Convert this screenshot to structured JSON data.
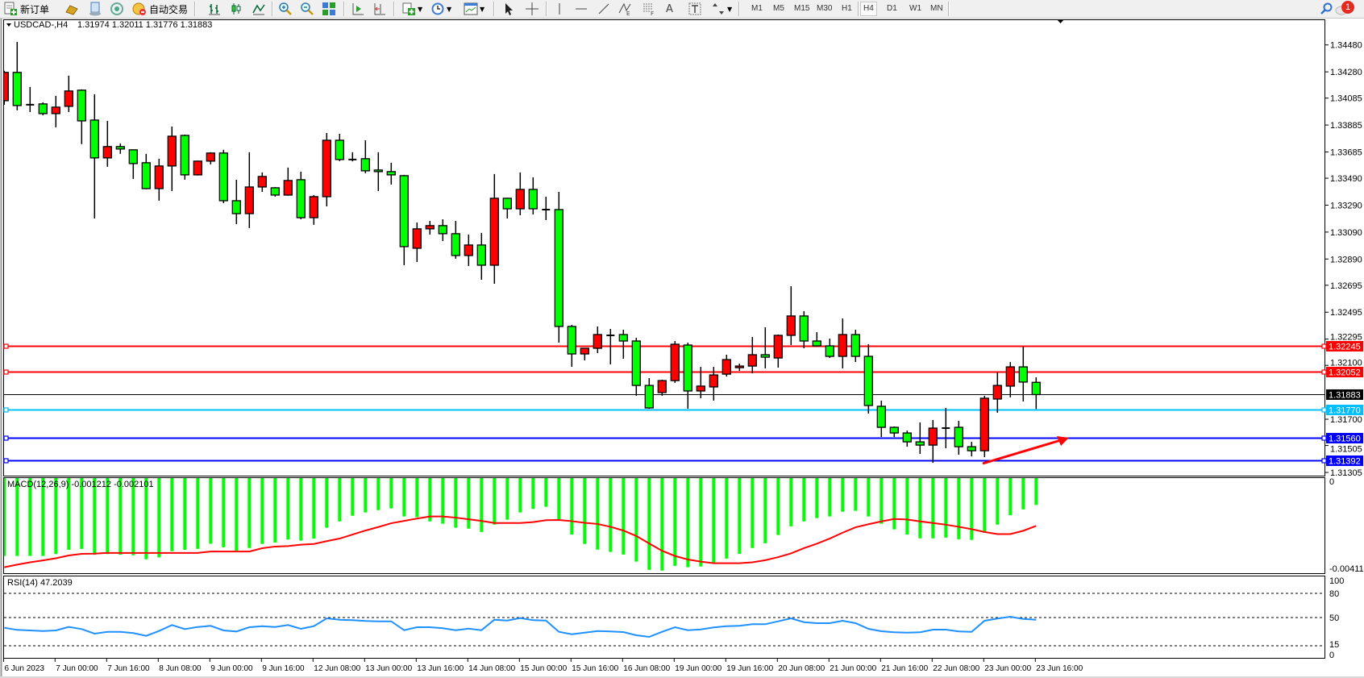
{
  "toolbar": {
    "new_order_label": "新订单",
    "autotrading_label": "自动交易",
    "timeframes": [
      "M1",
      "M5",
      "M15",
      "M30",
      "H1",
      "H4",
      "D1",
      "W1",
      "MN"
    ],
    "active_timeframe": "H4",
    "notification_count": "1",
    "icons": [
      "new-order-icon",
      "gold-bars-icon",
      "market-watch-icon",
      "signals-icon",
      "autotrading-icon",
      "bar-chart-icon",
      "candlestick-icon",
      "line-chart-icon",
      "zoom-in-icon",
      "zoom-out-icon",
      "tile-windows-icon",
      "auto-scroll-icon",
      "chart-shift-icon",
      "indicators-icon",
      "periods-clock-icon",
      "templates-icon",
      "cursor-icon",
      "crosshair-icon",
      "vertical-line-icon",
      "horizontal-line-icon",
      "trendline-icon",
      "fibonacci-expansion-icon",
      "fibonacci-fan-icon",
      "text-icon",
      "text-label-icon",
      "arrows-icon",
      "search-icon",
      "chat-notification-icon"
    ]
  },
  "chart": {
    "symbol_label": "USDCAD-,H4",
    "ohlc_label": "1.31974 1.32011 1.31776 1.31883",
    "macd_label": "MACD(12,26,9) -0.001212 -0.002101",
    "rsi_label": "RSI(14) 47.2039"
  },
  "chart_data": {
    "type": "candlestick",
    "up_color": "#ff0000",
    "down_color": "#00ff00",
    "ylim": [
      1.31281,
      1.3467
    ],
    "current_price": 1.31883,
    "current_price_label": "1.31883",
    "price_ticks": [
      "1.34480",
      "1.34280",
      "1.34085",
      "1.33885",
      "1.33685",
      "1.33490",
      "1.33290",
      "1.33090",
      "1.32890",
      "1.32695",
      "1.32495",
      "1.32295",
      "1.32100",
      "1.31700",
      "1.31505",
      "1.31305"
    ],
    "hlines": [
      {
        "price": 1.32245,
        "label": "1.32245",
        "color": "#ff0000"
      },
      {
        "price": 1.32052,
        "label": "1.32052",
        "color": "#ff0000"
      },
      {
        "price": 1.3177,
        "label": "1.31770",
        "color": "#00bfff"
      },
      {
        "price": 1.3156,
        "label": "1.31560",
        "color": "#0000ff"
      },
      {
        "price": 1.31392,
        "label": "1.31392",
        "color": "#0000ff"
      }
    ],
    "time_labels": [
      "6 Jun 2023",
      "7 Jun 00:00",
      "7 Jun 16:00",
      "8 Jun 08:00",
      "9 Jun 00:00",
      "9 Jun 16:00",
      "12 Jun 08:00",
      "13 Jun 00:00",
      "13 Jun 16:00",
      "14 Jun 08:00",
      "15 Jun 00:00",
      "15 Jun 16:00",
      "16 Jun 08:00",
      "19 Jun 00:00",
      "19 Jun 16:00",
      "20 Jun 08:00",
      "21 Jun 00:00",
      "21 Jun 16:00",
      "22 Jun 08:00",
      "23 Jun 00:00",
      "23 Jun 16:00"
    ],
    "ohlc_columns": [
      "open",
      "high",
      "low",
      "close"
    ],
    "ohlc": [
      [
        1.34066,
        1.34288,
        1.34036,
        1.34276
      ],
      [
        1.34276,
        1.34503,
        1.33994,
        1.3403
      ],
      [
        1.34036,
        1.34168,
        1.33982,
        1.3403
      ],
      [
        1.34042,
        1.34054,
        1.33958,
        1.3397
      ],
      [
        1.3397,
        1.34102,
        1.33868,
        1.34018
      ],
      [
        1.34024,
        1.34252,
        1.33982,
        1.34138
      ],
      [
        1.34144,
        1.3415,
        1.33743,
        1.33916
      ],
      [
        1.33922,
        1.34114,
        1.33191,
        1.33641
      ],
      [
        1.33641,
        1.33916,
        1.33575,
        1.33725
      ],
      [
        1.33725,
        1.33748,
        1.33671,
        1.33707
      ],
      [
        1.33701,
        1.33701,
        1.33485,
        1.33599
      ],
      [
        1.33605,
        1.33671,
        1.33408,
        1.33413
      ],
      [
        1.33413,
        1.33635,
        1.33323,
        1.33581
      ],
      [
        1.33581,
        1.33874,
        1.33395,
        1.33802
      ],
      [
        1.33808,
        1.33814,
        1.33479,
        1.33515
      ],
      [
        1.33515,
        1.3362,
        1.3351,
        1.33617
      ],
      [
        1.33617,
        1.33683,
        1.33593,
        1.33677
      ],
      [
        1.33677,
        1.33701,
        1.33305,
        1.33323
      ],
      [
        1.33323,
        1.33479,
        1.33149,
        1.33227
      ],
      [
        1.33227,
        1.33683,
        1.3312,
        1.33425
      ],
      [
        1.33425,
        1.33533,
        1.33389,
        1.33503
      ],
      [
        1.33419,
        1.33425,
        1.33353,
        1.33365
      ],
      [
        1.33365,
        1.33569,
        1.3336,
        1.33473
      ],
      [
        1.33479,
        1.33539,
        1.33185,
        1.33197
      ],
      [
        1.33197,
        1.33365,
        1.33144,
        1.33353
      ],
      [
        1.33353,
        1.33826,
        1.33281,
        1.33772
      ],
      [
        1.33772,
        1.3382,
        1.33617,
        1.33629
      ],
      [
        1.33629,
        1.33683,
        1.33615,
        1.33625
      ],
      [
        1.33635,
        1.33772,
        1.33527,
        1.33545
      ],
      [
        1.33551,
        1.33683,
        1.33395,
        1.33539
      ],
      [
        1.33539,
        1.33605,
        1.33443,
        1.33515
      ],
      [
        1.33509,
        1.33515,
        1.32844,
        1.32982
      ],
      [
        1.3297,
        1.33161,
        1.32868,
        1.33114
      ],
      [
        1.33114,
        1.33173,
        1.33072,
        1.33138
      ],
      [
        1.33138,
        1.33185,
        1.33024,
        1.33078
      ],
      [
        1.33078,
        1.33173,
        1.32892,
        1.32916
      ],
      [
        1.32916,
        1.33072,
        1.32838,
        1.32994
      ],
      [
        1.32994,
        1.33084,
        1.32736,
        1.32844
      ],
      [
        1.32844,
        1.33521,
        1.32706,
        1.33341
      ],
      [
        1.33341,
        1.33345,
        1.33191,
        1.33263
      ],
      [
        1.33263,
        1.33533,
        1.33215,
        1.33407
      ],
      [
        1.33407,
        1.33497,
        1.33221,
        1.33263
      ],
      [
        1.33257,
        1.33353,
        1.33179,
        1.33252
      ],
      [
        1.33257,
        1.33389,
        1.32269,
        1.32389
      ],
      [
        1.32389,
        1.32401,
        1.32089,
        1.32185
      ],
      [
        1.32185,
        1.3223,
        1.32137,
        1.32227
      ],
      [
        1.32227,
        1.32389,
        1.32191,
        1.32329
      ],
      [
        1.32323,
        1.32371,
        1.32107,
        1.32318
      ],
      [
        1.32329,
        1.32365,
        1.32149,
        1.32281
      ],
      [
        1.32281,
        1.32305,
        1.31874,
        1.31951
      ],
      [
        1.31951,
        1.32005,
        1.31778,
        1.31784
      ],
      [
        1.31898,
        1.31993,
        1.31874,
        1.31987
      ],
      [
        1.31987,
        1.32281,
        1.3197,
        1.32257
      ],
      [
        1.32251,
        1.32269,
        1.31778,
        1.3191
      ],
      [
        1.3191,
        1.32089,
        1.31856,
        1.31946
      ],
      [
        1.3194,
        1.32089,
        1.31838,
        1.32029
      ],
      [
        1.32035,
        1.32179,
        1.32017,
        1.32143
      ],
      [
        1.32083,
        1.32113,
        1.32059,
        1.32095
      ],
      [
        1.32095,
        1.32311,
        1.32041,
        1.32179
      ],
      [
        1.32179,
        1.32383,
        1.32077,
        1.32161
      ],
      [
        1.32155,
        1.32329,
        1.32083,
        1.32323
      ],
      [
        1.32323,
        1.32688,
        1.32251,
        1.32467
      ],
      [
        1.32467,
        1.32503,
        1.32227,
        1.32281
      ],
      [
        1.32281,
        1.32347,
        1.3224,
        1.32245
      ],
      [
        1.32245,
        1.32299,
        1.32155,
        1.32167
      ],
      [
        1.32167,
        1.32449,
        1.32077,
        1.32329
      ],
      [
        1.32329,
        1.32365,
        1.32125,
        1.32167
      ],
      [
        1.32167,
        1.32257,
        1.31742,
        1.31802
      ],
      [
        1.31796,
        1.31838,
        1.31568,
        1.3164
      ],
      [
        1.3164,
        1.31646,
        1.31568,
        1.31598
      ],
      [
        1.31598,
        1.31616,
        1.31496,
        1.31532
      ],
      [
        1.31532,
        1.31676,
        1.31442,
        1.31508
      ],
      [
        1.31508,
        1.31694,
        1.31376,
        1.31634
      ],
      [
        1.31634,
        1.31784,
        1.31484,
        1.31628
      ],
      [
        1.3164,
        1.31688,
        1.31436,
        1.31496
      ],
      [
        1.31496,
        1.31532,
        1.31424,
        1.31466
      ],
      [
        1.31466,
        1.31874,
        1.31418,
        1.31856
      ],
      [
        1.3185,
        1.32047,
        1.31748,
        1.31951
      ],
      [
        1.31946,
        1.32125,
        1.31862,
        1.32089
      ],
      [
        1.32089,
        1.32239,
        1.31832,
        1.31976
      ],
      [
        1.31974,
        1.32011,
        1.31776,
        1.31883
      ]
    ],
    "macd": {
      "ylim": [
        -0.004113,
        0
      ],
      "axis_labels": [
        "0",
        "-0.004113"
      ],
      "histogram_color": "#00ff00",
      "signal_color": "#ff0000",
      "histogram": [
        -0.00338,
        -0.00338,
        -0.00338,
        -0.00338,
        -0.0033,
        -0.00312,
        -0.00308,
        -0.00333,
        -0.0033,
        -0.00333,
        -0.00335,
        -0.00352,
        -0.00344,
        -0.00318,
        -0.00312,
        -0.00308,
        -0.00286,
        -0.00301,
        -0.00316,
        -0.00304,
        -0.00287,
        -0.00281,
        -0.00268,
        -0.00273,
        -0.00264,
        -0.00218,
        -0.00191,
        -0.00167,
        -0.00153,
        -0.00143,
        -0.00136,
        -0.0017,
        -0.00173,
        -0.00191,
        -0.00201,
        -0.00218,
        -0.00222,
        -0.00236,
        -0.00205,
        -0.00184,
        -0.00153,
        -0.00138,
        -0.00129,
        -0.00184,
        -0.00247,
        -0.00287,
        -0.00311,
        -0.00321,
        -0.00332,
        -0.00362,
        -0.00397,
        -0.004,
        -0.0038,
        -0.00386,
        -0.00383,
        -0.00367,
        -0.00349,
        -0.00329,
        -0.00304,
        -0.00284,
        -0.00249,
        -0.00212,
        -0.00191,
        -0.00177,
        -0.0017,
        -0.0015,
        -0.00146,
        -0.0017,
        -0.00201,
        -0.00225,
        -0.00247,
        -0.00263,
        -0.00263,
        -0.0026,
        -0.00267,
        -0.0027,
        -0.00239,
        -0.00205,
        -0.00165,
        -0.0014,
        -0.001212
      ],
      "signal": [
        -0.00386,
        -0.00375,
        -0.00365,
        -0.00357,
        -0.00348,
        -0.00336,
        -0.00329,
        -0.00328,
        -0.00325,
        -0.00325,
        -0.00325,
        -0.00325,
        -0.00325,
        -0.00325,
        -0.00325,
        -0.00325,
        -0.00319,
        -0.00319,
        -0.00319,
        -0.00319,
        -0.00305,
        -0.00298,
        -0.00296,
        -0.0029,
        -0.00287,
        -0.00275,
        -0.00264,
        -0.00247,
        -0.0023,
        -0.00215,
        -0.00199,
        -0.00189,
        -0.00179,
        -0.0017,
        -0.0017,
        -0.00175,
        -0.00182,
        -0.00189,
        -0.00198,
        -0.00198,
        -0.00198,
        -0.00194,
        -0.00186,
        -0.00185,
        -0.0019,
        -0.00197,
        -0.00202,
        -0.00214,
        -0.0023,
        -0.00253,
        -0.00285,
        -0.00316,
        -0.00338,
        -0.00353,
        -0.00362,
        -0.00369,
        -0.00369,
        -0.00369,
        -0.00365,
        -0.00356,
        -0.00343,
        -0.00327,
        -0.00305,
        -0.00286,
        -0.00264,
        -0.00239,
        -0.00216,
        -0.00203,
        -0.00191,
        -0.00181,
        -0.00183,
        -0.00191,
        -0.00198,
        -0.00205,
        -0.00214,
        -0.00224,
        -0.00236,
        -0.00245,
        -0.00245,
        -0.00231,
        -0.002101
      ]
    },
    "rsi": {
      "ylim": [
        0,
        100
      ],
      "levels": [
        80,
        50,
        15
      ],
      "axis_labels": [
        "100",
        "80",
        "50",
        "15",
        "0"
      ],
      "color": "#1e90ff",
      "values": [
        37.3,
        34.7,
        34,
        33.3,
        34,
        38.3,
        35.7,
        30,
        32.3,
        32.3,
        30.7,
        27.3,
        33.3,
        40.7,
        35.7,
        38.3,
        39.7,
        34,
        32.7,
        38,
        39.3,
        38.3,
        40.7,
        36,
        39.3,
        49,
        47.3,
        46.7,
        45.7,
        45.3,
        45.3,
        34.3,
        38,
        38,
        36.7,
        34.3,
        36.3,
        34.3,
        47.3,
        46.3,
        49.3,
        46.7,
        46.3,
        32.3,
        29.3,
        31.3,
        33.3,
        32.7,
        32,
        28,
        26,
        32.3,
        38,
        34.3,
        35.3,
        37.7,
        39.3,
        39.7,
        41.7,
        41.7,
        45.3,
        49,
        44.3,
        43,
        43,
        46,
        43,
        36,
        33,
        31.7,
        31.3,
        31.7,
        35,
        35,
        32.7,
        32.3,
        46,
        48.7,
        51,
        48.3,
        47.2
      ]
    }
  }
}
